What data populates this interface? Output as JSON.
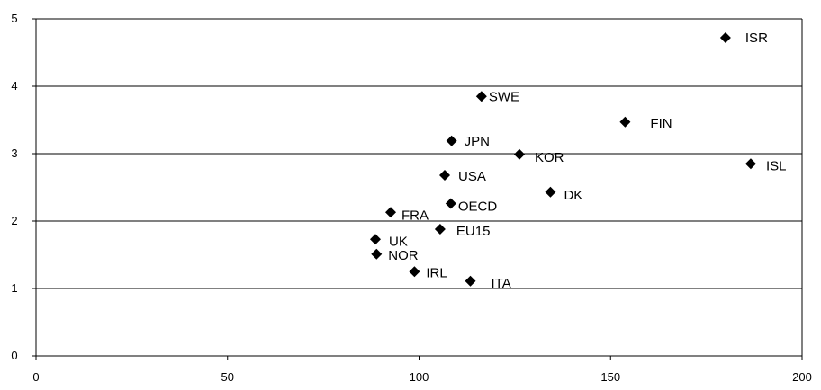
{
  "chart_data": {
    "type": "scatter",
    "title": "",
    "xlabel": "",
    "ylabel": "",
    "xlim": [
      0,
      200
    ],
    "ylim": [
      0,
      5
    ],
    "xticks": [
      0,
      50,
      100,
      150,
      200
    ],
    "yticks": [
      0,
      1,
      2,
      3,
      4,
      5
    ],
    "grid": "horizontal",
    "legend": "none",
    "marker": "diamond",
    "marker_color": "#000000",
    "points": [
      {
        "label": "ISR",
        "x": 180.0,
        "y": 4.72
      },
      {
        "label": "SWE",
        "x": 116.3,
        "y": 3.85
      },
      {
        "label": "FIN",
        "x": 153.8,
        "y": 3.47
      },
      {
        "label": "JPN",
        "x": 108.5,
        "y": 3.19
      },
      {
        "label": "KOR",
        "x": 126.2,
        "y": 2.99
      },
      {
        "label": "ISL",
        "x": 186.6,
        "y": 2.85
      },
      {
        "label": "USA",
        "x": 106.7,
        "y": 2.68
      },
      {
        "label": "DK",
        "x": 134.3,
        "y": 2.43
      },
      {
        "label": "OECD",
        "x": 108.3,
        "y": 2.26
      },
      {
        "label": "FRA",
        "x": 92.6,
        "y": 2.13
      },
      {
        "label": "EU15",
        "x": 105.5,
        "y": 1.88
      },
      {
        "label": "UK",
        "x": 88.6,
        "y": 1.73
      },
      {
        "label": "NOR",
        "x": 88.9,
        "y": 1.51
      },
      {
        "label": "IRL",
        "x": 98.8,
        "y": 1.25
      },
      {
        "label": "ITA",
        "x": 113.4,
        "y": 1.11
      }
    ]
  }
}
